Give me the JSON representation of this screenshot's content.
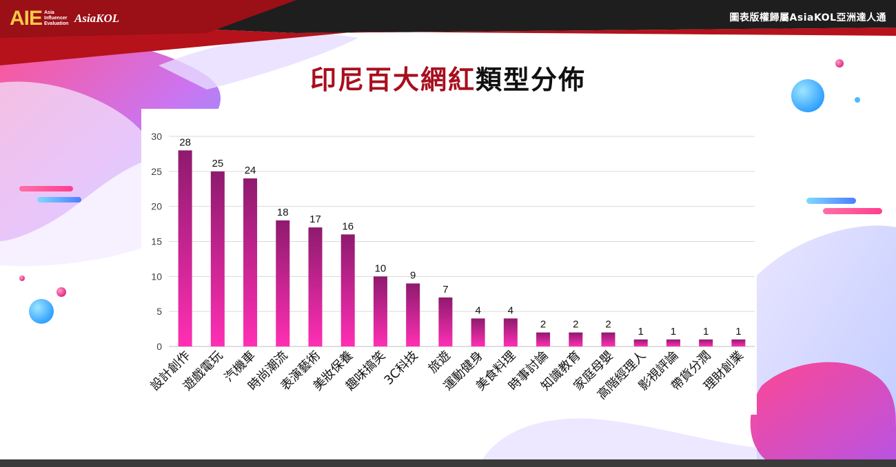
{
  "header": {
    "logo_aie": "AIE",
    "logo_aie_subtitle": [
      "Asia",
      "Influencer",
      "Evaluation"
    ],
    "logo_brand": "AsiaKOL",
    "copyright": "圖表版權歸屬AsiaKOL亞洲達人通"
  },
  "title": {
    "highlight": "印尼百大網紅",
    "rest": "類型分佈"
  },
  "watermark": "AsiaKOL",
  "colors": {
    "top_band_dark": "#1e1e1e",
    "top_band_red": "#b5121b",
    "bar_top": "#8e1a6e",
    "bar_bottom": "#ff2fb4",
    "grid": "#d9d9d9",
    "blob_pink": "#ff3f8e",
    "blob_blue": "#52c4ff"
  },
  "chart_data": {
    "type": "bar",
    "categories": [
      "設計創作",
      "遊戲電玩",
      "汽機車",
      "時尚潮流",
      "表演藝術",
      "美妝保養",
      "趣味搞笑",
      "3C科技",
      "旅遊",
      "運動健身",
      "美食料理",
      "時事討論",
      "知識教育",
      "家庭母嬰",
      "高階經理人",
      "影視評論",
      "帶貨分潤",
      "理財創業"
    ],
    "values": [
      28,
      25,
      24,
      18,
      17,
      16,
      10,
      9,
      7,
      4,
      4,
      2,
      2,
      2,
      1,
      1,
      1,
      1
    ],
    "ylim": [
      0,
      30
    ],
    "yticks": [
      0,
      5,
      10,
      15,
      20,
      25,
      30
    ],
    "grid": true,
    "data_labels": true,
    "xlabel": "",
    "ylabel": ""
  }
}
